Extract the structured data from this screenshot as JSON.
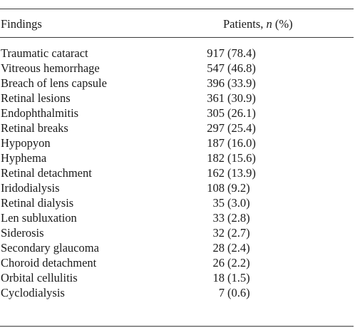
{
  "table": {
    "header": {
      "findings": "Findings",
      "patients_prefix": "Patients, ",
      "patients_n": "n",
      "patients_suffix": " (%)"
    },
    "rows": [
      {
        "finding": "Traumatic cataract",
        "count": "917",
        "pct": "(78.4)"
      },
      {
        "finding": "Vitreous hemorrhage",
        "count": "547",
        "pct": "(46.8)"
      },
      {
        "finding": "Breach of lens capsule",
        "count": "396",
        "pct": "(33.9)"
      },
      {
        "finding": "Retinal lesions",
        "count": "361",
        "pct": "(30.9)"
      },
      {
        "finding": "Endophthalmitis",
        "count": "305",
        "pct": "(26.1)"
      },
      {
        "finding": "Retinal breaks",
        "count": "297",
        "pct": "(25.4)"
      },
      {
        "finding": "Hypopyon",
        "count": "187",
        "pct": "(16.0)"
      },
      {
        "finding": "Hyphema",
        "count": "182",
        "pct": "(15.6)"
      },
      {
        "finding": "Retinal detachment",
        "count": "162",
        "pct": "(13.9)"
      },
      {
        "finding": "Iridodialysis",
        "count": "108",
        "pct": "(9.2)"
      },
      {
        "finding": "Retinal dialysis",
        "count": "35",
        "pct": "(3.0)"
      },
      {
        "finding": "Len subluxation",
        "count": "33",
        "pct": "(2.8)"
      },
      {
        "finding": "Siderosis",
        "count": "32",
        "pct": "(2.7)"
      },
      {
        "finding": "Secondary glaucoma",
        "count": "28",
        "pct": "(2.4)"
      },
      {
        "finding": "Choroid detachment",
        "count": "26",
        "pct": "(2.2)"
      },
      {
        "finding": "Orbital cellulitis",
        "count": "18",
        "pct": "(1.5)"
      },
      {
        "finding": "Cyclodialysis",
        "count": "7",
        "pct": "(0.6)"
      }
    ]
  }
}
